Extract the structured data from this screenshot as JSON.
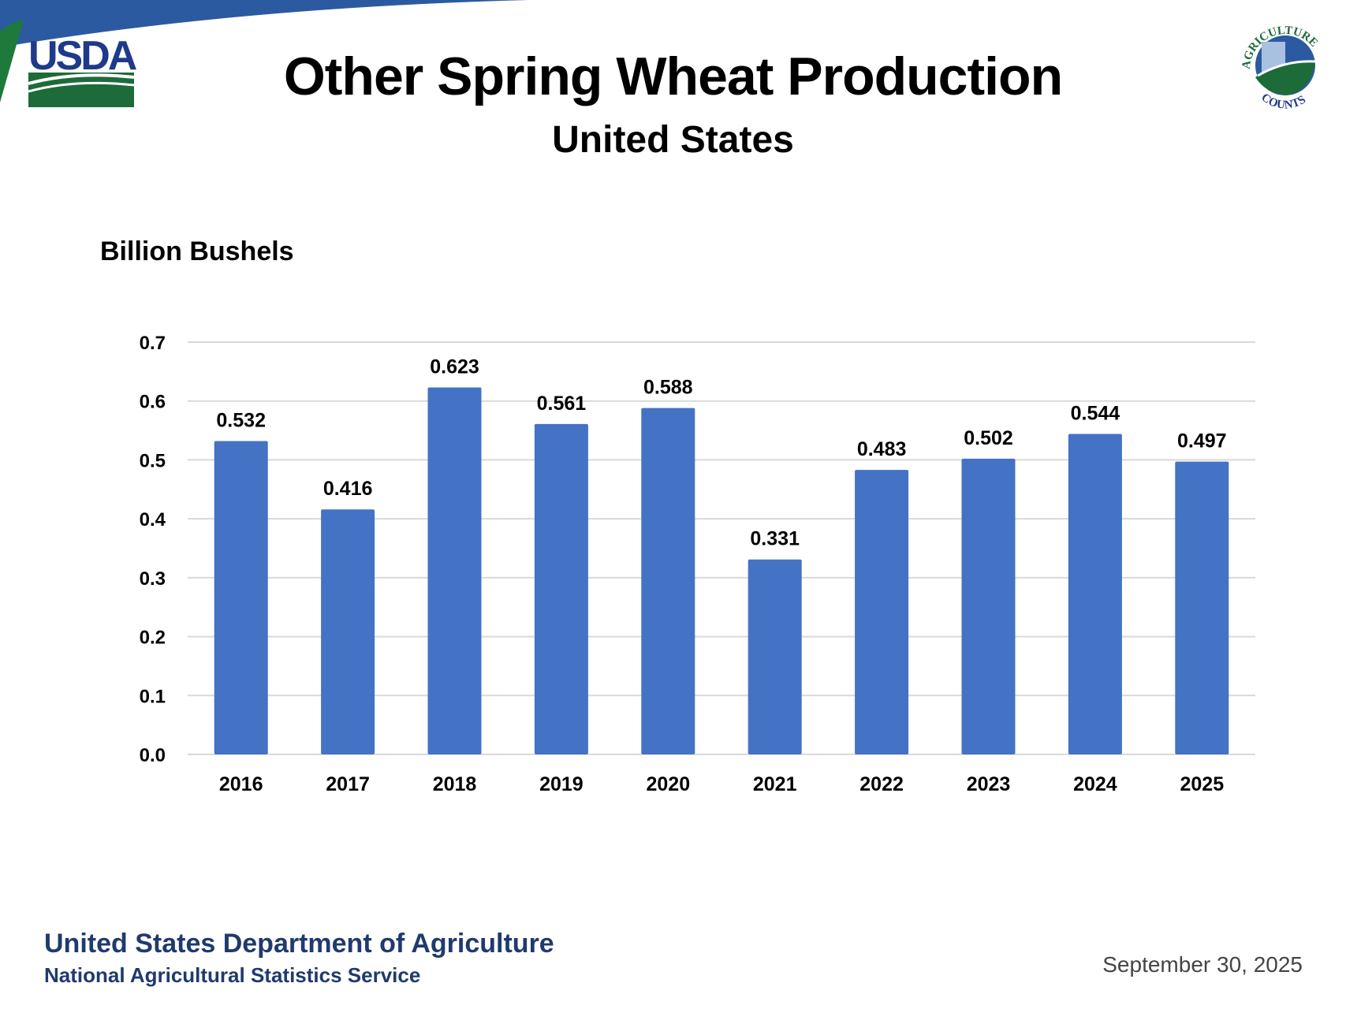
{
  "header": {
    "title": "Other Spring Wheat Production",
    "subtitle": "United States",
    "logo_left_text": "USDA",
    "logo_right_text": "AGRICULTURE COUNTS"
  },
  "footer": {
    "department": "United States Department of Agriculture",
    "service": "National Agricultural Statistics Service",
    "date": "September 30, 2025"
  },
  "colors": {
    "bar": "#4472c4",
    "grid": "#d9d9d9",
    "footer_text": "#1f3a6e"
  },
  "chart_data": {
    "type": "bar",
    "title": "Other Spring Wheat Production",
    "subtitle": "United States",
    "ylabel": "Billion Bushels",
    "xlabel": "",
    "categories": [
      "2016",
      "2017",
      "2018",
      "2019",
      "2020",
      "2021",
      "2022",
      "2023",
      "2024",
      "2025"
    ],
    "values": [
      0.532,
      0.416,
      0.623,
      0.561,
      0.588,
      0.331,
      0.483,
      0.502,
      0.544,
      0.497
    ],
    "data_labels": [
      "0.532",
      "0.416",
      "0.623",
      "0.561",
      "0.588",
      "0.331",
      "0.483",
      "0.502",
      "0.544",
      "0.497"
    ],
    "ylim": [
      0,
      0.7
    ],
    "yticks": [
      "0.0",
      "0.1",
      "0.2",
      "0.3",
      "0.4",
      "0.5",
      "0.6",
      "0.7"
    ],
    "grid": true,
    "legend": "none"
  }
}
